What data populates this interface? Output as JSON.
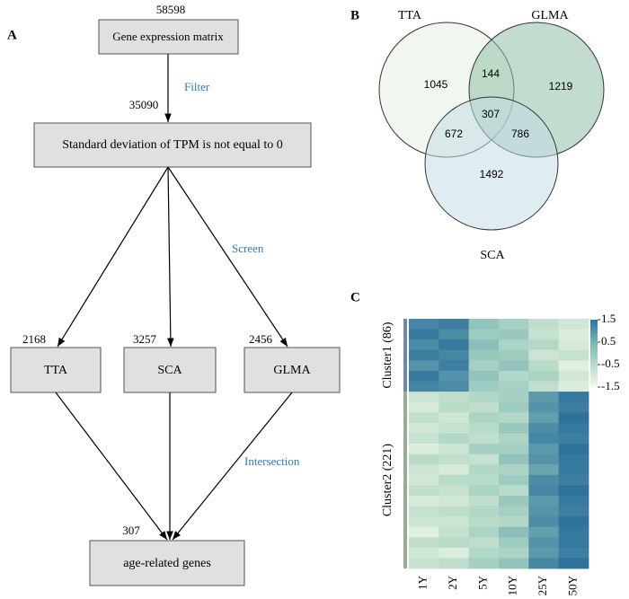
{
  "panels": {
    "a": "A",
    "b": "B",
    "c": "C"
  },
  "flowchart": {
    "nodes": [
      {
        "label": "Gene expression matrix",
        "count": 58598
      },
      {
        "label": "Standard deviation of TPM is not equal to 0",
        "count": 35090
      },
      {
        "label": "TTA",
        "count": 2168
      },
      {
        "label": "SCA",
        "count": 3257
      },
      {
        "label": "GLMA",
        "count": 2456
      },
      {
        "label": "age-related genes",
        "count": 307
      }
    ],
    "edge_labels": [
      "Filter",
      "Screen",
      "Intersection"
    ]
  },
  "venn": {
    "sets": [
      {
        "label": "TTA",
        "color": "#e6f0e0"
      },
      {
        "label": "GLMA",
        "color": "#8fbfa8"
      },
      {
        "label": "SCA",
        "color": "#c5dde6"
      }
    ],
    "regions": {
      "tta_only": 1045,
      "tta_glma": 144,
      "glma_only": 1219,
      "all": 307,
      "tta_sca": 672,
      "glma_sca": 786,
      "sca_only": 1492
    }
  },
  "heatmap": {
    "columns": [
      "1Y",
      "2Y",
      "5Y",
      "10Y",
      "25Y",
      "50Y"
    ],
    "clusters": [
      {
        "label": "Cluster1 (86)",
        "color": "#6e88a8",
        "rows": [
          [
            1.2,
            1.3,
            0.1,
            -0.2,
            -0.6,
            -0.9
          ],
          [
            1.4,
            1.1,
            -0.1,
            0.0,
            -0.7,
            -1.1
          ],
          [
            1.1,
            1.4,
            0.2,
            -0.3,
            -0.4,
            -1.0
          ],
          [
            1.3,
            1.2,
            0.0,
            -0.1,
            -0.8,
            -0.7
          ],
          [
            1.0,
            1.3,
            -0.2,
            0.1,
            -0.5,
            -1.2
          ],
          [
            1.4,
            1.0,
            0.1,
            -0.4,
            -0.3,
            -0.9
          ],
          [
            1.2,
            1.1,
            -0.1,
            -0.2,
            -0.6,
            -1.1
          ]
        ]
      },
      {
        "label": "Cluster2 (221)",
        "color": "#9caa9c",
        "rows": [
          [
            -0.8,
            -0.6,
            -0.4,
            -0.2,
            0.9,
            1.4
          ],
          [
            -1.0,
            -0.5,
            -0.6,
            -0.1,
            1.0,
            1.3
          ],
          [
            -0.6,
            -0.9,
            -0.3,
            -0.4,
            0.8,
            1.5
          ],
          [
            -0.9,
            -0.7,
            -0.5,
            0.0,
            1.1,
            1.4
          ],
          [
            -0.7,
            -0.4,
            -0.6,
            -0.3,
            1.2,
            1.3
          ],
          [
            -1.1,
            -0.8,
            -0.2,
            -0.2,
            0.9,
            1.5
          ],
          [
            -0.5,
            -0.6,
            -0.7,
            0.1,
            1.0,
            1.4
          ],
          [
            -0.8,
            -1.0,
            -0.4,
            -0.3,
            0.7,
            1.4
          ],
          [
            -0.9,
            -0.5,
            -0.5,
            -0.1,
            1.1,
            1.3
          ],
          [
            -0.6,
            -0.7,
            -0.3,
            -0.5,
            1.2,
            1.5
          ],
          [
            -1.0,
            -0.9,
            -0.6,
            0.0,
            0.9,
            1.4
          ],
          [
            -0.7,
            -0.6,
            -0.4,
            -0.2,
            1.0,
            1.3
          ],
          [
            -0.8,
            -0.8,
            -0.5,
            -0.4,
            1.1,
            1.5
          ],
          [
            -1.2,
            -0.7,
            -0.3,
            0.2,
            0.8,
            1.4
          ],
          [
            -0.6,
            -0.5,
            -0.6,
            -0.1,
            1.0,
            1.4
          ],
          [
            -0.9,
            -1.1,
            -0.4,
            -0.3,
            0.9,
            1.3
          ],
          [
            -0.7,
            -0.6,
            -0.2,
            0.1,
            1.2,
            1.5
          ]
        ]
      }
    ],
    "colorbar": {
      "lim": [
        -1.5,
        1.5
      ],
      "ticks": [
        1.5,
        0.5,
        -0.5,
        -1.5
      ],
      "colors": [
        "#f4f8ea",
        "#b9dcc9",
        "#79b3b5",
        "#2f729c"
      ]
    }
  }
}
